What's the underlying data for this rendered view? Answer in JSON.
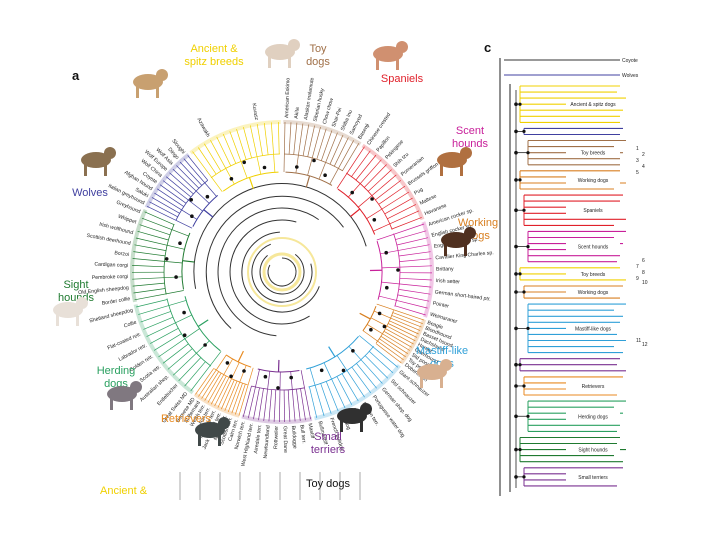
{
  "panels": {
    "a": "a",
    "c": "c"
  },
  "colors": {
    "ancient": "#f0d000",
    "toy": "#a07048",
    "spaniels": "#e0202a",
    "scent": "#c8209a",
    "working": "#d87f20",
    "mastiff": "#30a0d8",
    "terriers": "#7a3090",
    "retrievers": "#e88a20",
    "herding": "#2aa060",
    "sight": "#1f7a30",
    "wolves": "#4040a0",
    "core": "#333333"
  },
  "radial_groups": [
    {
      "key": "ancient",
      "lines": [
        "Ancient &",
        "spitz breeds"
      ]
    },
    {
      "key": "toy",
      "lines": [
        "Toy",
        "dogs"
      ]
    },
    {
      "key": "spaniels",
      "lines": [
        "Spaniels"
      ]
    },
    {
      "key": "scent",
      "lines": [
        "Scent",
        "hounds"
      ]
    },
    {
      "key": "working",
      "lines": [
        "Working",
        "dogs"
      ]
    },
    {
      "key": "mastiff",
      "lines": [
        "Mastiff-like",
        "dogs"
      ]
    },
    {
      "key": "terriers",
      "lines": [
        "Small",
        "terriers"
      ]
    },
    {
      "key": "retrievers",
      "lines": [
        "Retrievers"
      ]
    },
    {
      "key": "herding",
      "lines": [
        "Herding",
        "dogs"
      ]
    },
    {
      "key": "sight",
      "lines": [
        "Sight",
        "hounds"
      ]
    },
    {
      "key": "wolves",
      "lines": [
        "Wolves"
      ]
    }
  ],
  "bottom_labels": {
    "ancient": "Ancient &",
    "toy": "Toy dogs"
  },
  "radial_leaves": [
    "American Eskimo",
    "Akita",
    "Alaskan malamute",
    "Siberian husky",
    "Chow chow",
    "Shar-Pei",
    "Shiba Inu",
    "Samoyed",
    "Basenji",
    "Chinese crested",
    "Papillon",
    "Pekingese",
    "Shih tzu",
    "Pomeranian",
    "Brussels griffon",
    "Pug",
    "Maltese",
    "Havanese",
    "American cocker sp.",
    "English cocker sp.",
    "English springer sp.",
    "Cavalier King Charles sp.",
    "Brittany",
    "Irish setter",
    "German short-haired ptr.",
    "Pointer",
    "Weimaraner",
    "Beagle",
    "Bloodhound",
    "Basset hound",
    "Dachshund",
    "Harrier",
    "Otterhound",
    "Std poodle",
    "Toy poodle",
    "Dobermann",
    "Giant schnauzer",
    "Std schnauzer",
    "German shep. dog",
    "Portuguese water dog",
    "Boston terr.",
    "Boxer",
    "Bulldog",
    "French bulldog",
    "Bullmastiff",
    "Mastiff",
    "Bull terr.",
    "Bulldogge",
    "Great Dane",
    "Rottweiler",
    "Newfoundland",
    "Airedale terr.",
    "West Highland terr.",
    "Norwich terr.",
    "Cairn terr.",
    "Scottish terr.",
    "Norfolk terr.",
    "Jack Russell terr.",
    "Yorkshire terr.",
    "Rat terr.",
    "Welsh terr.",
    "St Bernard",
    "Bernese MD",
    "Great Swiss MD",
    "Entlebucher",
    "Australian shep.",
    "Nova Scotia retr.",
    "Golden retr.",
    "Labrador retr.",
    "Flat-coated retr.",
    "Collie",
    "Shetland sheepdog",
    "Border collie",
    "Old English sheepdog",
    "Pembroke corgi",
    "Cardigan corgi",
    "Borzoi",
    "Scottish deerhound",
    "Irish wolfhound",
    "Whippet",
    "Greyhound",
    "Italian greyhound",
    "Saluki",
    "Afghan hound",
    "Coyote",
    "Wolf China",
    "Wolf Europe",
    "Wolf Asia",
    "Dingo",
    "Sloughi",
    "Azawakh",
    "Kuvasz"
  ],
  "rect_tree": {
    "outgroups": [
      {
        "key": "core",
        "label": "Coyote"
      },
      {
        "key": "wolves",
        "label": "Wolves"
      }
    ],
    "clades": [
      {
        "key": "ancient",
        "label": "Ancient & spitz dogs",
        "n": 7
      },
      {
        "key": "wolves",
        "label": "",
        "n": 2
      },
      {
        "key": "toy",
        "label": "Toy breeds",
        "n": 5
      },
      {
        "key": "working",
        "label": "Working dogs",
        "n": 4
      },
      {
        "key": "spaniels",
        "label": "Spaniels",
        "n": 6
      },
      {
        "key": "scent",
        "label": "Scent hounds",
        "n": 6
      },
      {
        "key": "ancient",
        "label": "Toy breeds",
        "n": 3
      },
      {
        "key": "working",
        "label": "Working dogs",
        "n": 3
      },
      {
        "key": "mastiff",
        "label": "Mastiff-like dogs",
        "n": 9
      },
      {
        "key": "terriers",
        "label": "",
        "n": 3
      },
      {
        "key": "retrievers",
        "label": "Retrievers",
        "n": 4
      },
      {
        "key": "herding",
        "label": "Herding dogs",
        "n": 6
      },
      {
        "key": "sight",
        "label": "Sight hounds",
        "n": 5
      },
      {
        "key": "terriers",
        "label": "Small terriers",
        "n": 4
      }
    ],
    "numbers": [
      "1",
      "2",
      "3",
      "4",
      "5",
      "6",
      "7",
      "8",
      "9",
      "10",
      "11",
      "12"
    ]
  }
}
